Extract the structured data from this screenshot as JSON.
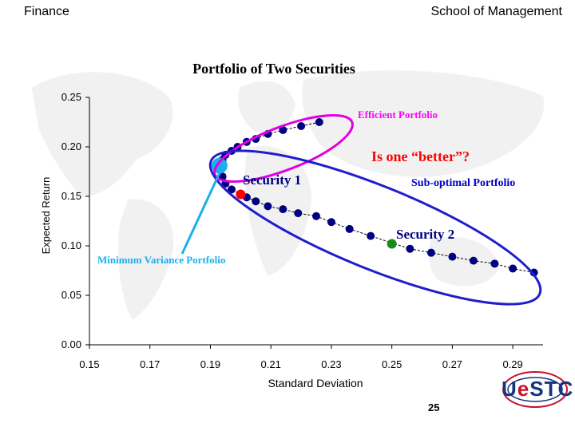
{
  "header": {
    "left": "Finance",
    "right": "School of Management"
  },
  "page_number": "25",
  "logo_text": {
    "u": "U",
    "e": "e",
    "rest": "STC"
  },
  "chart_data": {
    "type": "scatter",
    "title": "Portfolio of Two Securities",
    "xlabel": "Standard Deviation",
    "ylabel": "Expected Return",
    "xlim": [
      0.15,
      0.3
    ],
    "ylim": [
      0.0,
      0.25
    ],
    "xticks": [
      "0.15",
      "0.17",
      "0.19",
      "0.21",
      "0.23",
      "0.25",
      "0.27",
      "0.29"
    ],
    "yticks": [
      "0.00",
      "0.05",
      "0.10",
      "0.15",
      "0.20",
      "0.25"
    ],
    "series": [
      {
        "color": "#000080",
        "points": [
          [
            0.226,
            0.225
          ],
          [
            0.22,
            0.221
          ],
          [
            0.214,
            0.217
          ],
          [
            0.209,
            0.213
          ],
          [
            0.205,
            0.208
          ],
          [
            0.202,
            0.205
          ],
          [
            0.199,
            0.2
          ],
          [
            0.197,
            0.196
          ],
          [
            0.195,
            0.192
          ],
          [
            0.194,
            0.187
          ],
          [
            0.194,
            0.179
          ],
          [
            0.194,
            0.17
          ],
          [
            0.195,
            0.163
          ],
          [
            0.197,
            0.157
          ],
          [
            0.202,
            0.149
          ],
          [
            0.205,
            0.145
          ],
          [
            0.209,
            0.14
          ],
          [
            0.214,
            0.137
          ],
          [
            0.219,
            0.133
          ],
          [
            0.225,
            0.13
          ],
          [
            0.23,
            0.124
          ],
          [
            0.236,
            0.117
          ],
          [
            0.243,
            0.11
          ],
          [
            0.256,
            0.097
          ],
          [
            0.263,
            0.093
          ],
          [
            0.27,
            0.089
          ],
          [
            0.277,
            0.085
          ],
          [
            0.284,
            0.082
          ],
          [
            0.29,
            0.077
          ],
          [
            0.297,
            0.073
          ]
        ]
      }
    ],
    "highlights": [
      {
        "label": "min-variance-point",
        "x": 0.193,
        "y": 0.181,
        "color": "#1ab0ec"
      },
      {
        "label": "security-1-point",
        "x": 0.2,
        "y": 0.152,
        "color": "#ff0000"
      },
      {
        "label": "security-2-point",
        "x": 0.25,
        "y": 0.102,
        "color": "#1a8a1a"
      }
    ],
    "annotations": [
      {
        "text": "Efficient Portfolio",
        "color": "#ff00ff"
      },
      {
        "text": "Is one “better”?",
        "color": "#ff0000"
      },
      {
        "text": "Security 1",
        "color": "#000080"
      },
      {
        "text": "Sub-optimal Portfolio",
        "color": "#0000cc"
      },
      {
        "text": "Security 2",
        "color": "#000080"
      },
      {
        "text": "Minimum Variance Portfolio",
        "color": "#1ab0ec"
      }
    ],
    "grid": false
  }
}
